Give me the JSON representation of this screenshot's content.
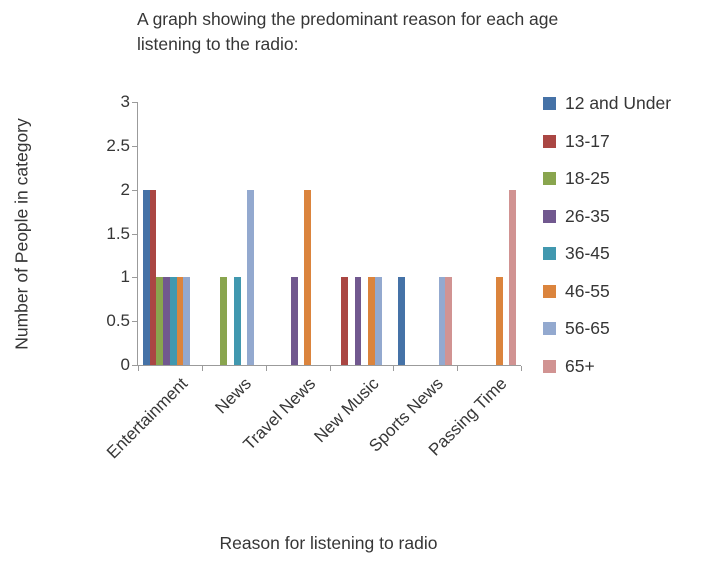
{
  "title": {
    "line1": "A graph showing the predominant reason for each age",
    "line2": "listening to the radio:"
  },
  "y_axis_title": "Number of People in category",
  "x_axis_title": "Reason for listening to radio",
  "chart_data": {
    "type": "bar",
    "title": "A graph showing the predominant reason for each age listening to the radio:",
    "xlabel": "Reason for listening to radio",
    "ylabel": "Number of People in category",
    "ylim": [
      0,
      3
    ],
    "y_ticks": [
      0,
      0.5,
      1,
      1.5,
      2,
      2.5,
      3
    ],
    "grid": false,
    "legend_position": "right",
    "axis_color": "#9b9b9b",
    "text_color": "#363636",
    "categories": [
      "Entertainment",
      "News",
      "Travel News",
      "New Music",
      "Sports News",
      "Passing Time"
    ],
    "series": [
      {
        "name": "12 and Under",
        "color": "#4572A7",
        "values": [
          2,
          0,
          0,
          0,
          1,
          0
        ]
      },
      {
        "name": "13-17",
        "color": "#AA4643",
        "values": [
          2,
          0,
          0,
          1,
          0,
          0
        ]
      },
      {
        "name": "18-25",
        "color": "#89A54E",
        "values": [
          1,
          1,
          0,
          0,
          0,
          0
        ]
      },
      {
        "name": "26-35",
        "color": "#71588F",
        "values": [
          1,
          0,
          1,
          1,
          0,
          0
        ]
      },
      {
        "name": "36-45",
        "color": "#4198AF",
        "values": [
          1,
          1,
          0,
          0,
          0,
          0
        ]
      },
      {
        "name": "46-55",
        "color": "#DB843D",
        "values": [
          1,
          0,
          2,
          1,
          0,
          1
        ]
      },
      {
        "name": "56-65",
        "color": "#93A9CF",
        "values": [
          1,
          2,
          0,
          1,
          1,
          0
        ]
      },
      {
        "name": "65+",
        "color": "#D19392",
        "values": [
          0,
          0,
          0,
          0,
          1,
          2
        ]
      }
    ]
  }
}
